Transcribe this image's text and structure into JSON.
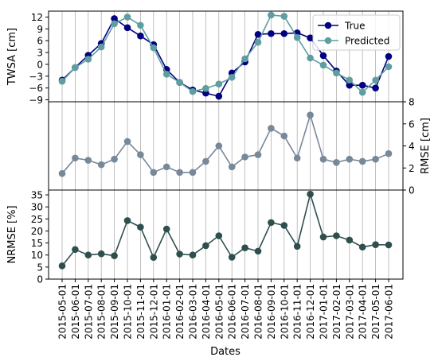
{
  "chart_data": [
    {
      "type": "line",
      "panel": "twsa",
      "ylabel": "TWSA [cm]",
      "ylim": [
        -9.5,
        13.5
      ],
      "yticks": [
        -9,
        -6,
        -3,
        0,
        3,
        6,
        9,
        12
      ],
      "series": [
        {
          "name": "True",
          "color": "#000080",
          "values": [
            -4.0,
            -0.8,
            2.3,
            5.3,
            11.6,
            9.3,
            7.2,
            5.0,
            -1.3,
            -4.6,
            -6.5,
            -7.3,
            -8.1,
            -2.2,
            0.6,
            7.6,
            7.8,
            7.8,
            8.0,
            6.7,
            2.2,
            -1.7,
            -5.3,
            -5.3,
            -6.0,
            2.0
          ]
        },
        {
          "name": "Predicted",
          "color": "#5f9ea0",
          "values": [
            -4.3,
            -0.8,
            1.3,
            4.4,
            10.3,
            12.0,
            9.9,
            4.2,
            -2.5,
            -4.6,
            -6.9,
            -6.1,
            -5.0,
            -3.3,
            1.4,
            5.6,
            12.5,
            12.2,
            6.8,
            1.6,
            -0.2,
            -2.2,
            -4.0,
            -7.1,
            -4.0,
            -0.6
          ]
        }
      ],
      "legend_position": "upper-right"
    },
    {
      "type": "line",
      "panel": "rmse",
      "ylabel": "RMSE [cm]",
      "ylim": [
        0,
        8
      ],
      "yticks": [
        0,
        2,
        4,
        6,
        8
      ],
      "y_axis_side": "right",
      "color": "#778899",
      "values": [
        1.5,
        2.9,
        2.7,
        2.3,
        2.8,
        4.4,
        3.2,
        1.6,
        2.1,
        1.6,
        1.6,
        2.6,
        4.0,
        2.1,
        3.0,
        3.2,
        5.6,
        4.9,
        2.9,
        6.8,
        2.8,
        2.5,
        2.8,
        2.6,
        2.8,
        3.3
      ]
    },
    {
      "type": "line",
      "panel": "nrmse",
      "ylabel": "NRMSE [%]",
      "ylim": [
        0,
        37
      ],
      "yticks": [
        0,
        5,
        10,
        15,
        20,
        25,
        30,
        35
      ],
      "color": "#2f4f4f",
      "values": [
        5.5,
        12.3,
        10.0,
        10.5,
        9.7,
        24.3,
        21.6,
        9.0,
        20.8,
        10.4,
        10.0,
        13.9,
        18.0,
        9.1,
        13.0,
        11.6,
        23.5,
        22.3,
        13.6,
        35.3,
        17.5,
        18.0,
        16.2,
        13.3,
        14.3,
        14.2
      ]
    }
  ],
  "x_dates": [
    "2015-05-01",
    "2015-06-01",
    "2015-07-01",
    "2015-08-01",
    "2015-09-01",
    "2015-10-01",
    "2015-11-01",
    "2015-12-01",
    "2016-01-01",
    "2016-02-01",
    "2016-03-01",
    "2016-04-01",
    "2016-05-01",
    "2016-06-01",
    "2016-07-01",
    "2016-08-01",
    "2016-09-01",
    "2016-10-01",
    "2016-11-01",
    "2016-12-01",
    "2017-01-01",
    "2017-02-01",
    "2017-03-01",
    "2017-04-01",
    "2017-05-01",
    "2017-06-01"
  ],
  "xlabel": "Dates",
  "grid": "vertical"
}
